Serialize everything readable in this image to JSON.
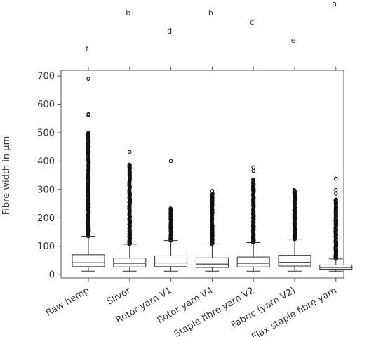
{
  "chart_data": {
    "type": "boxplot",
    "title": "",
    "xlabel": "",
    "ylabel": "Fibre width in µm",
    "ylim": [
      -12,
      720
    ],
    "yticks": [
      0,
      100,
      200,
      300,
      400,
      500,
      600,
      700
    ],
    "grid": false,
    "legend": "none",
    "categories": [
      "Raw hemp",
      "Sliver",
      "Rotor yarn V1",
      "Rotor yarn V4",
      "Staple fibre yarn V2",
      "Fabric (yarn V2)",
      "Flax staple fibre yarn"
    ],
    "significance_letters": [
      "f",
      "b",
      "d",
      "b",
      "c",
      "e",
      "a"
    ],
    "boxes": [
      {
        "name": "Raw hemp",
        "whisker_low": 12,
        "q1": 28,
        "median": 42,
        "q3": 70,
        "whisker_high": 135,
        "outlier_range": [
          135,
          500
        ],
        "extreme_outliers": [
          562,
          565,
          690
        ]
      },
      {
        "name": "Sliver",
        "whisker_low": 12,
        "q1": 27,
        "median": 40,
        "q3": 58,
        "whisker_high": 107,
        "outlier_range": [
          107,
          388
        ],
        "extreme_outliers": [
          432
        ]
      },
      {
        "name": "Rotor yarn V1",
        "whisker_low": 12,
        "q1": 28,
        "median": 41,
        "q3": 66,
        "whisker_high": 120,
        "outlier_range": [
          120,
          233
        ],
        "extreme_outliers": [
          400
        ]
      },
      {
        "name": "Rotor yarn V4",
        "whisker_low": 12,
        "q1": 25,
        "median": 37,
        "q3": 59,
        "whisker_high": 108,
        "outlier_range": [
          108,
          285
        ],
        "extreme_outliers": [
          295
        ]
      },
      {
        "name": "Staple fibre yarn V2",
        "whisker_low": 12,
        "q1": 27,
        "median": 40,
        "q3": 62,
        "whisker_high": 113,
        "outlier_range": [
          113,
          335
        ],
        "extreme_outliers": [
          365,
          378
        ]
      },
      {
        "name": "Fabric (yarn V2)",
        "whisker_low": 12,
        "q1": 30,
        "median": 43,
        "q3": 68,
        "whisker_high": 125,
        "outlier_range": [
          125,
          298
        ],
        "extreme_outliers": []
      },
      {
        "name": "Flax staple fibre yarn",
        "whisker_low": 12,
        "q1": 19,
        "median": 25,
        "q3": 34,
        "whisker_high": 55,
        "outlier_range": [
          55,
          265
        ],
        "extreme_outliers": [
          285,
          298,
          338
        ]
      }
    ]
  },
  "colors": {
    "axis": "#555555",
    "box": "#333333",
    "text": "#333333"
  }
}
